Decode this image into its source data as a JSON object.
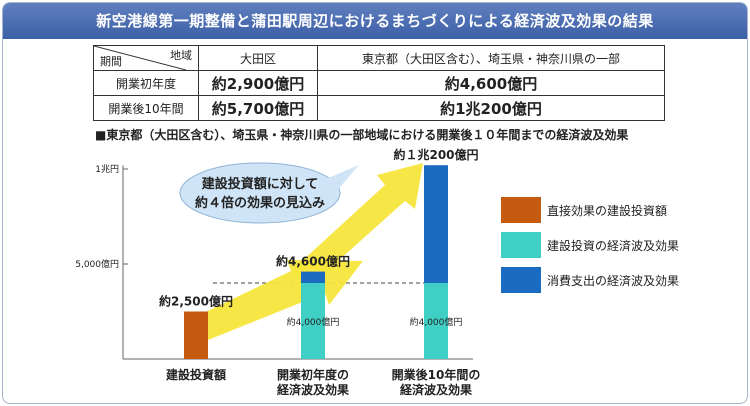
{
  "title": "新空港線第一期整備と蒲田駅周辺におけるまちづくりによる経済波及効果の結果",
  "summary_table": {
    "corner_top": "地域",
    "corner_bottom": "期間",
    "columns": [
      "大田区",
      "東京都（大田区含む）、埼玉県・神奈川県の一部"
    ],
    "rows": [
      {
        "label": "開業初年度",
        "values": [
          "約2,900億円",
          "約4,600億円"
        ]
      },
      {
        "label": "開業後10年間",
        "values": [
          "約5,700億円",
          "約1兆200億円"
        ]
      }
    ]
  },
  "subtitle": "■東京都（大田区含む）、埼玉県・神奈川県の一部地域における開業後１０年間までの経済波及効果",
  "callout": [
    "建設投資額に対して",
    "約４倍の効果の見込み"
  ],
  "colors": {
    "direct": "#c55a11",
    "construction": "#3fcfc5",
    "consumption": "#1b6cc0",
    "arrow": "#f7e63c"
  },
  "chart_data": {
    "type": "bar",
    "stacked": true,
    "categories": [
      "建設投資額",
      "開業初年度の\n経済波及効果",
      "開業後10年間の\n経済波及効果"
    ],
    "category_lines": [
      [
        "建設投資額"
      ],
      [
        "開業初年度の",
        "経済波及効果"
      ],
      [
        "開業後10年間の",
        "経済波及効果"
      ]
    ],
    "series": [
      {
        "name": "直接効果の建設投資額",
        "values": [
          2500,
          0,
          0
        ]
      },
      {
        "name": "建設投資の経済波及効果",
        "values": [
          0,
          4000,
          4000
        ]
      },
      {
        "name": "消費支出の経済波及効果",
        "values": [
          0,
          600,
          6200
        ]
      }
    ],
    "total_labels": [
      "約2,500億円",
      "約4,600億円",
      "約１兆200億円"
    ],
    "segment_labels": [
      "",
      "約4,000億円",
      "約4,000億円"
    ],
    "yticks": [
      {
        "value": 5000,
        "label": "5,000億円"
      },
      {
        "value": 10000,
        "label": "1兆円"
      }
    ],
    "ylim": [
      0,
      10200
    ],
    "legend_position": "right"
  }
}
